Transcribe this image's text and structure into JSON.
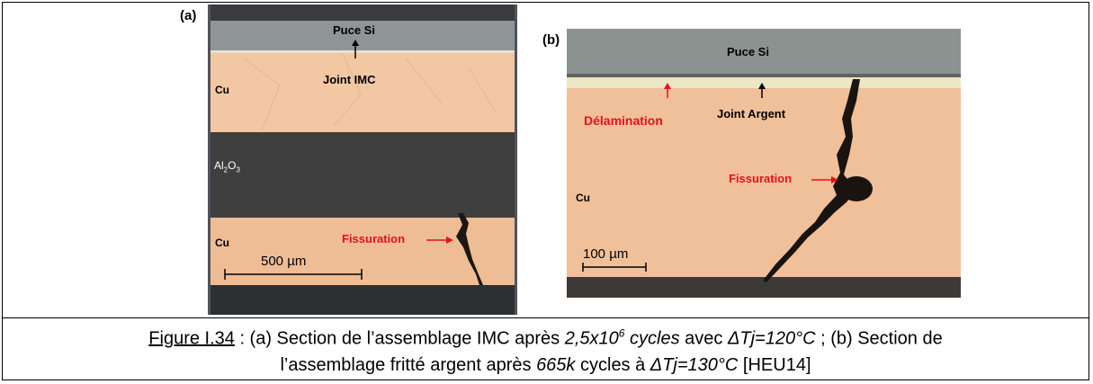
{
  "panel_a": {
    "panel_label": "(a)",
    "puce": "Puce Si",
    "joint": "Joint IMC",
    "cu_top": "Cu",
    "al2o3_main": "Al",
    "al2o3_sub1": "2",
    "al2o3_o": "O",
    "al2o3_sub2": "3",
    "cu_bottom": "Cu",
    "fissuration": "Fissuration",
    "scale": "500 µm"
  },
  "panel_b": {
    "panel_label": "(b)",
    "puce": "Puce Si",
    "delamination": "Délamination",
    "joint": "Joint Argent",
    "cu": "Cu",
    "fissuration": "Fissuration",
    "scale": "100 µm"
  },
  "caption": {
    "fig_ref": "Figure I.34",
    "line1_a": " : (a) Section de l’assemblage IMC après ",
    "cycles_num": "2,5x10",
    "cycles_exp": "6",
    "cycles_word": " cycles",
    "line1_b": " avec ",
    "dtj1": "ΔTj=120°C",
    "line1_c": " ; (b) Section de",
    "line2_a": "l’assemblage fritté argent après ",
    "k665": "665k",
    "line2_b": " cycles à ",
    "dtj2": "ΔTj=130°C",
    "line2_c": " [HEU14]"
  },
  "colors": {
    "copper": "#f3c4a0",
    "si_grey": "#8c9294",
    "ceramic": "#3f403f",
    "label_red": "#e8101a",
    "crack": "#1a1410"
  }
}
